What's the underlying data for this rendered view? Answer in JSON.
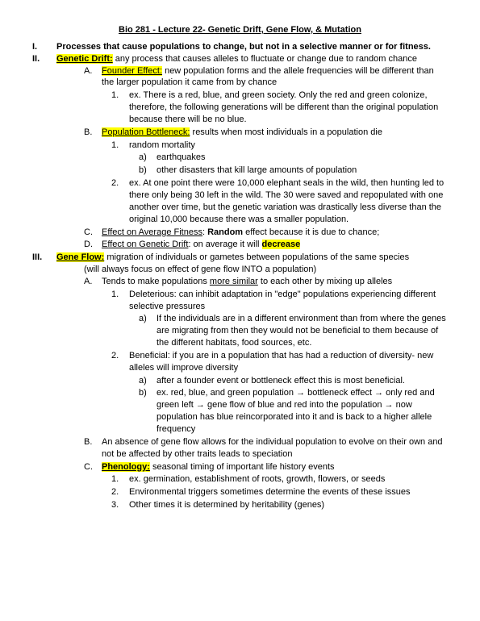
{
  "title": "Bio 281 - Lecture 22- Genetic Drift, Gene Flow, & Mutation",
  "s1": {
    "num": "I.",
    "text": "Processes that cause populations to change, but not in a selective manner or for fitness."
  },
  "s2": {
    "num": "II.",
    "term": "Genetic Drift:",
    "def": " any process that causes alleles to fluctuate or change due to random chance",
    "a": {
      "m": "A.",
      "term": "Founder Effect:",
      "def": " new population forms and the allele frequencies will be different than the larger population it came from by chance",
      "a1": {
        "m": "1.",
        "text": "ex. There is a red, blue, and green society. Only the red and green colonize, therefore, the following generations will be different than the original population because there will be no blue."
      }
    },
    "b": {
      "m": "B.",
      "term": "Population Bottleneck:",
      "def": " results when most individuals in a population die",
      "b1": {
        "m": "1.",
        "text": "random mortality"
      },
      "b1a": {
        "m": "a)",
        "text": "earthquakes"
      },
      "b1b": {
        "m": "b)",
        "text": "other disasters that kill large amounts of population"
      },
      "b2": {
        "m": "2.",
        "text": "ex. At one point there were 10,000 elephant seals in the wild, then hunting led to there only being 30 left in the wild. The 30 were saved and repopulated with one another over time, but the genetic variation was drastically less diverse than the original 10,000 because there was a smaller population."
      }
    },
    "c": {
      "m": "C.",
      "pre": "Effect on Average Fitness",
      "mid": ": ",
      "rand": "Random",
      "post": " effect because it is due to chance;"
    },
    "d": {
      "m": "D.",
      "pre": "Effect on Genetic Drift",
      "mid": ": on average it will ",
      "dec": "decrease"
    }
  },
  "s3": {
    "num": "III.",
    "term": "Gene Flow:",
    "def": " migration of individuals or gametes between populations of the same species",
    "paren": "(will always focus on effect of gene flow INTO a population)",
    "a": {
      "m": "A.",
      "pre": "Tends to make populations ",
      "sim": "more similar",
      "post": " to each other by mixing up alleles",
      "a1": {
        "m": "1.",
        "text": "Deleterious: can inhibit adaptation in \"edge\" populations experiencing different selective pressures"
      },
      "a1a": {
        "m": "a)",
        "text": "If the individuals are in a different environment than from where the genes are migrating from then they would not be beneficial to them because of the different habitats, food sources, etc."
      },
      "a2": {
        "m": "2.",
        "text": "Beneficial: if you are in a population that has had a reduction of diversity- new alleles will improve diversity"
      },
      "a2a": {
        "m": "a)",
        "text": "after a founder event or bottleneck effect this is most beneficial."
      },
      "a2b": {
        "m": "b)",
        "text": "ex. red, blue, and green population → bottleneck effect → only red and green left → gene flow of blue and red into the population → now population has blue reincorporated into it and is back to a higher allele frequency"
      }
    },
    "b": {
      "m": "B.",
      "text": "An absence of gene flow allows for the individual population to evolve on their own and not be affected by other traits leads to speciation"
    },
    "c": {
      "m": "C.",
      "term": "Phenology:",
      "def": " seasonal timing of important life history events",
      "c1": {
        "m": "1.",
        "text": "ex. germination, establishment of roots, growth, flowers, or seeds"
      },
      "c2": {
        "m": "2.",
        "text": "Environmental triggers sometimes determine the events of these issues"
      },
      "c3": {
        "m": "3.",
        "text": "Other times it is determined by heritability (genes)"
      }
    }
  }
}
